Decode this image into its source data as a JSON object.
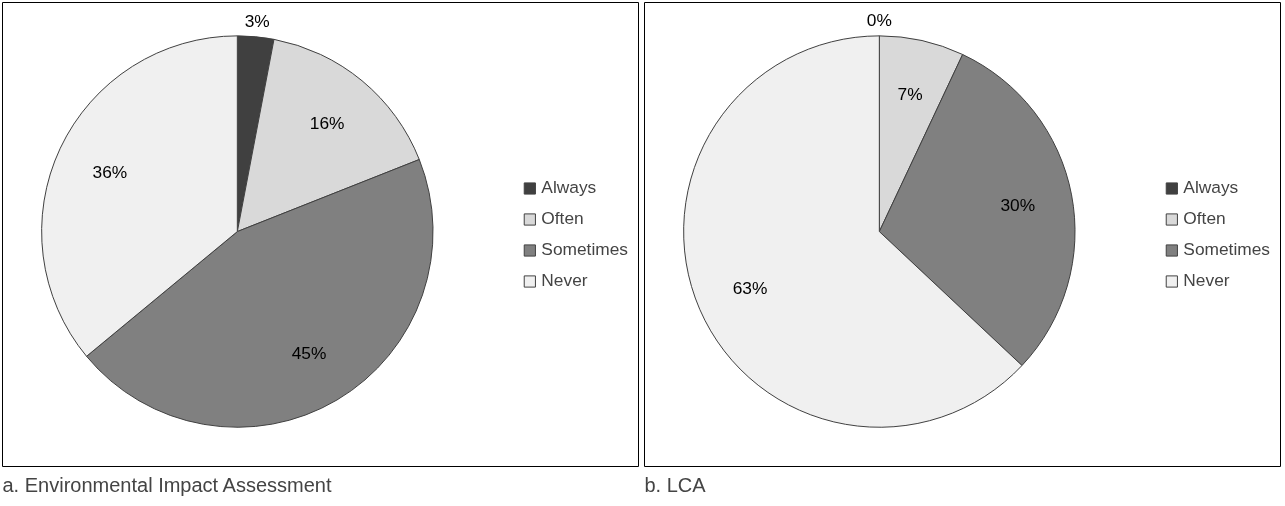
{
  "chart_data": [
    {
      "type": "pie",
      "title": "a. Environmental Impact Assessment",
      "categories": [
        "Always",
        "Often",
        "Sometimes",
        "Never"
      ],
      "values": [
        3,
        16,
        45,
        36
      ],
      "colors": [
        "#404040",
        "#d9d9d9",
        "#808080",
        "#f0f0f0"
      ],
      "value_labels": [
        "3%",
        "16%",
        "45%",
        "36%"
      ],
      "legend": "right"
    },
    {
      "type": "pie",
      "title": "b. LCA",
      "categories": [
        "Always",
        "Often",
        "Sometimes",
        "Never"
      ],
      "values": [
        0,
        7,
        30,
        63
      ],
      "colors": [
        "#404040",
        "#d9d9d9",
        "#808080",
        "#f0f0f0"
      ],
      "value_labels": [
        "0%",
        "7%",
        "30%",
        "63%"
      ],
      "legend": "right"
    }
  ]
}
